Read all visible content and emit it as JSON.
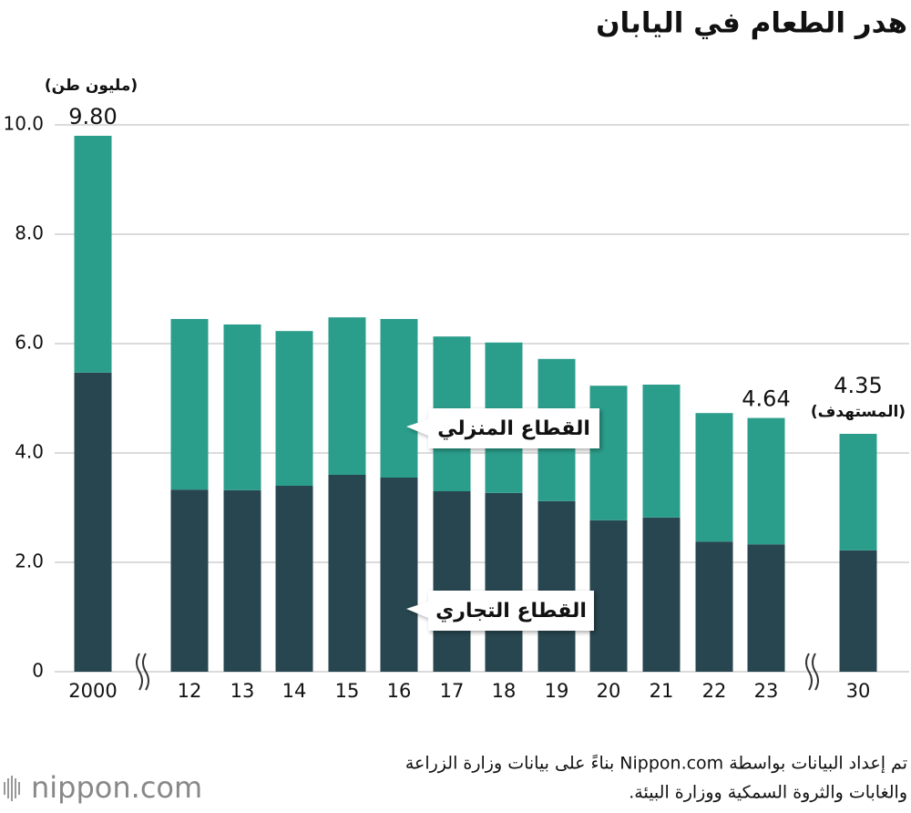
{
  "chart_data": {
    "type": "stacked_bar",
    "title": "هدر الطعام في اليابان",
    "y_unit": "(مليون طن)",
    "categories": [
      "2000",
      "12",
      "13",
      "14",
      "15",
      "16",
      "17",
      "18",
      "19",
      "20",
      "21",
      "22",
      "23",
      "30"
    ],
    "series": [
      {
        "name": "القطاع التجاري",
        "color": "#27464f",
        "values": [
          5.47,
          3.33,
          3.32,
          3.4,
          3.6,
          3.55,
          3.3,
          3.27,
          3.12,
          2.77,
          2.82,
          2.38,
          2.33,
          2.22
        ]
      },
      {
        "name": "القطاع المنزلي",
        "color": "#2b9d8b",
        "values": [
          4.33,
          3.12,
          3.03,
          2.83,
          2.88,
          2.9,
          2.83,
          2.75,
          2.6,
          2.46,
          2.43,
          2.35,
          2.31,
          2.13
        ]
      }
    ],
    "total_labels": [
      "9.80",
      null,
      null,
      null,
      null,
      null,
      null,
      null,
      null,
      null,
      null,
      null,
      "4.64",
      "4.35"
    ],
    "target_note": "(المستهدف)",
    "ylim": [
      0,
      10
    ],
    "yticks": [
      0,
      {
        "value": 2,
        "label": "2.0"
      },
      {
        "value": 4,
        "label": "4.0"
      },
      {
        "value": 6,
        "label": "6.0"
      },
      {
        "value": 8,
        "label": "8.0"
      },
      {
        "value": 10,
        "label": "10.0"
      }
    ],
    "grid": true,
    "source": [
      "تم إعداد البيانات بواسطة Nippon.com بناءً على بيانات وزارة الزراعة",
      "والغابات والثروة السمكية ووزارة البيئة."
    ],
    "logo": "nippon.com"
  }
}
